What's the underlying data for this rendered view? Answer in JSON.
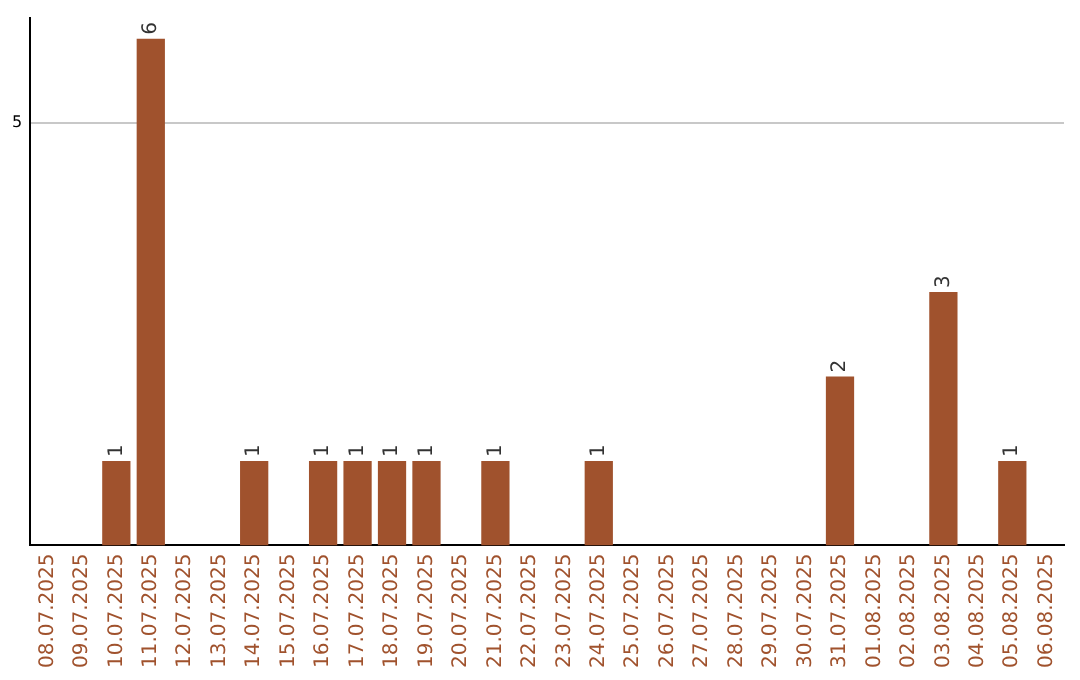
{
  "chart_data": {
    "type": "bar",
    "categories": [
      "08.07.2025",
      "09.07.2025",
      "10.07.2025",
      "11.07.2025",
      "12.07.2025",
      "13.07.2025",
      "14.07.2025",
      "15.07.2025",
      "16.07.2025",
      "17.07.2025",
      "18.07.2025",
      "19.07.2025",
      "20.07.2025",
      "21.07.2025",
      "22.07.2025",
      "23.07.2025",
      "24.07.2025",
      "25.07.2025",
      "26.07.2025",
      "27.07.2025",
      "28.07.2025",
      "29.07.2025",
      "30.07.2025",
      "31.07.2025",
      "01.08.2025",
      "02.08.2025",
      "03.08.2025",
      "04.08.2025",
      "05.08.2025",
      "06.08.2025"
    ],
    "values": [
      0,
      0,
      1,
      6,
      0,
      0,
      1,
      0,
      1,
      1,
      1,
      1,
      0,
      1,
      0,
      0,
      1,
      0,
      0,
      0,
      0,
      0,
      0,
      2,
      0,
      0,
      3,
      0,
      1,
      0
    ],
    "value_labels": [
      null,
      null,
      "1",
      "6",
      null,
      null,
      "1",
      null,
      "1",
      "1",
      "1",
      "1",
      null,
      "1",
      null,
      null,
      "1",
      null,
      null,
      null,
      null,
      null,
      null,
      "2",
      null,
      null,
      "3",
      null,
      "1",
      null
    ],
    "color": "#a0522d",
    "ylim": [
      0,
      6.25
    ],
    "yticks": [
      5
    ],
    "grid": "y",
    "legend": false
  }
}
